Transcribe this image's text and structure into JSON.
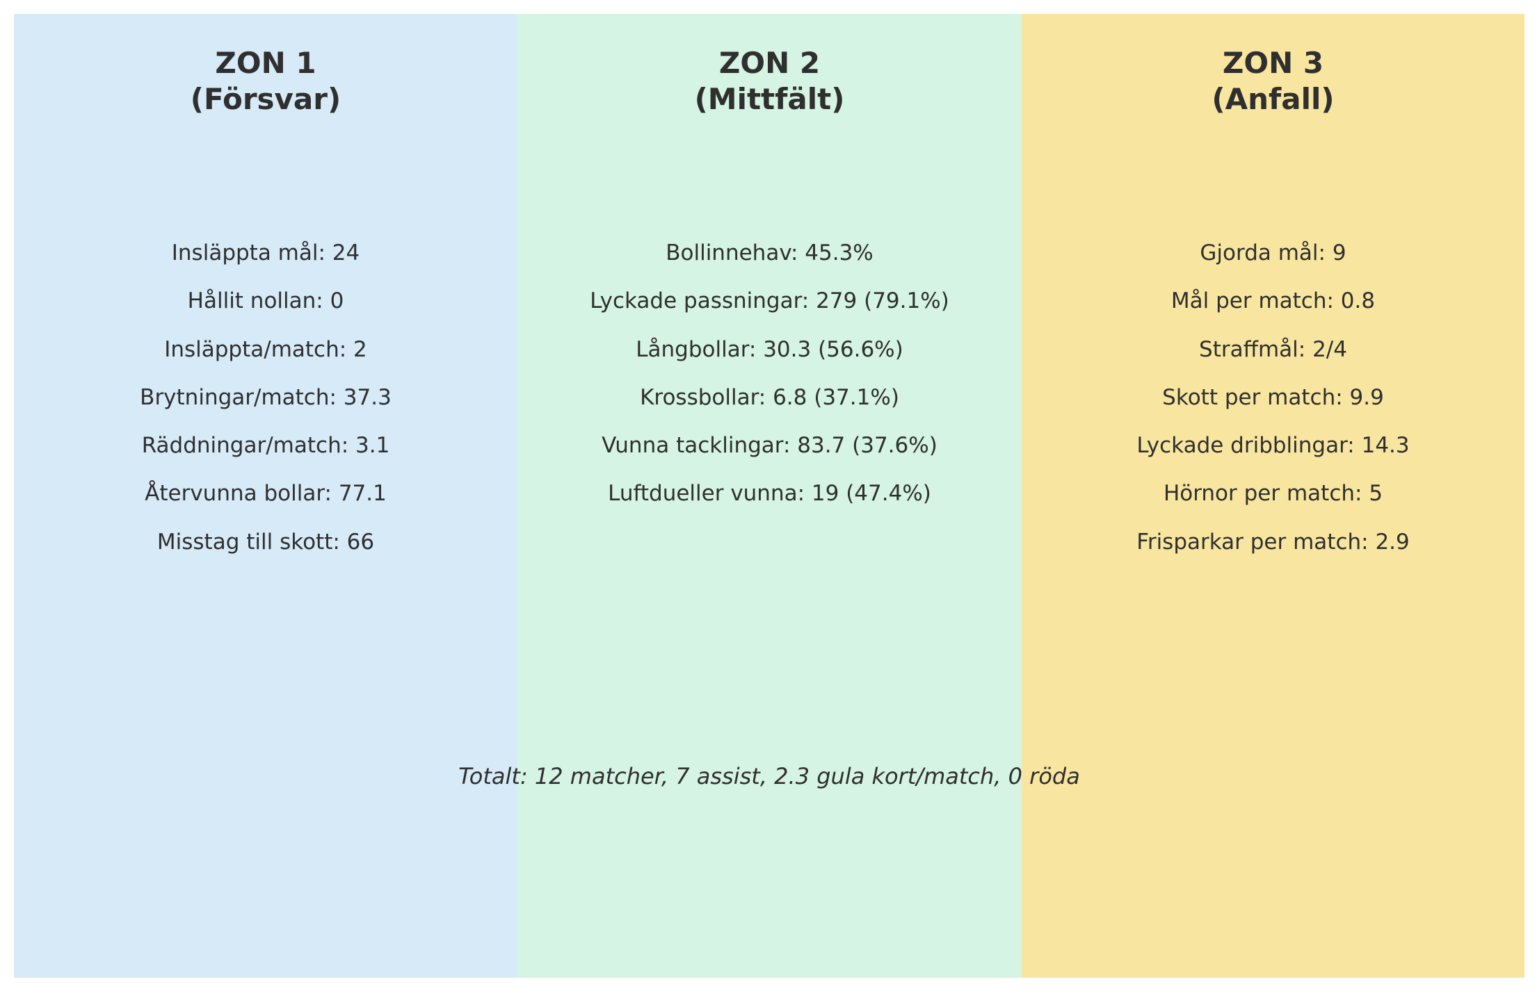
{
  "zones": [
    {
      "title": "ZON 1",
      "subtitle": "(Försvar)",
      "color": "#d7eaf7",
      "stats": [
        "Insläppta mål: 24",
        "Hållit nollan: 0",
        "Insläppta/match: 2",
        "Brytningar/match: 37.3",
        "Räddningar/match: 3.1",
        "Återvunna bollar: 77.1",
        "Misstag till skott: 66"
      ]
    },
    {
      "title": "ZON 2",
      "subtitle": "(Mittfält)",
      "color": "#d5f4e3",
      "stats": [
        "Bollinnehav: 45.3%",
        "Lyckade passningar: 279 (79.1%)",
        "Långbollar: 30.3 (56.6%)",
        "Krossbollar: 6.8 (37.1%)",
        "Vunna tacklingar: 83.7 (37.6%)",
        "Luftdueller vunna: 19 (47.4%)"
      ]
    },
    {
      "title": "ZON 3",
      "subtitle": "(Anfall)",
      "color": "#f8e6a0",
      "stats": [
        "Gjorda mål: 9",
        "Mål per match: 0.8",
        "Straffmål: 2/4",
        "Skott per match: 9.9",
        "Lyckade dribblingar: 14.3",
        "Hörnor per match: 5",
        "Frisparkar per match: 2.9"
      ]
    }
  ],
  "summary": "Totalt: 12 matcher, 7 assist, 2.3 gula kort/match, 0 röda"
}
